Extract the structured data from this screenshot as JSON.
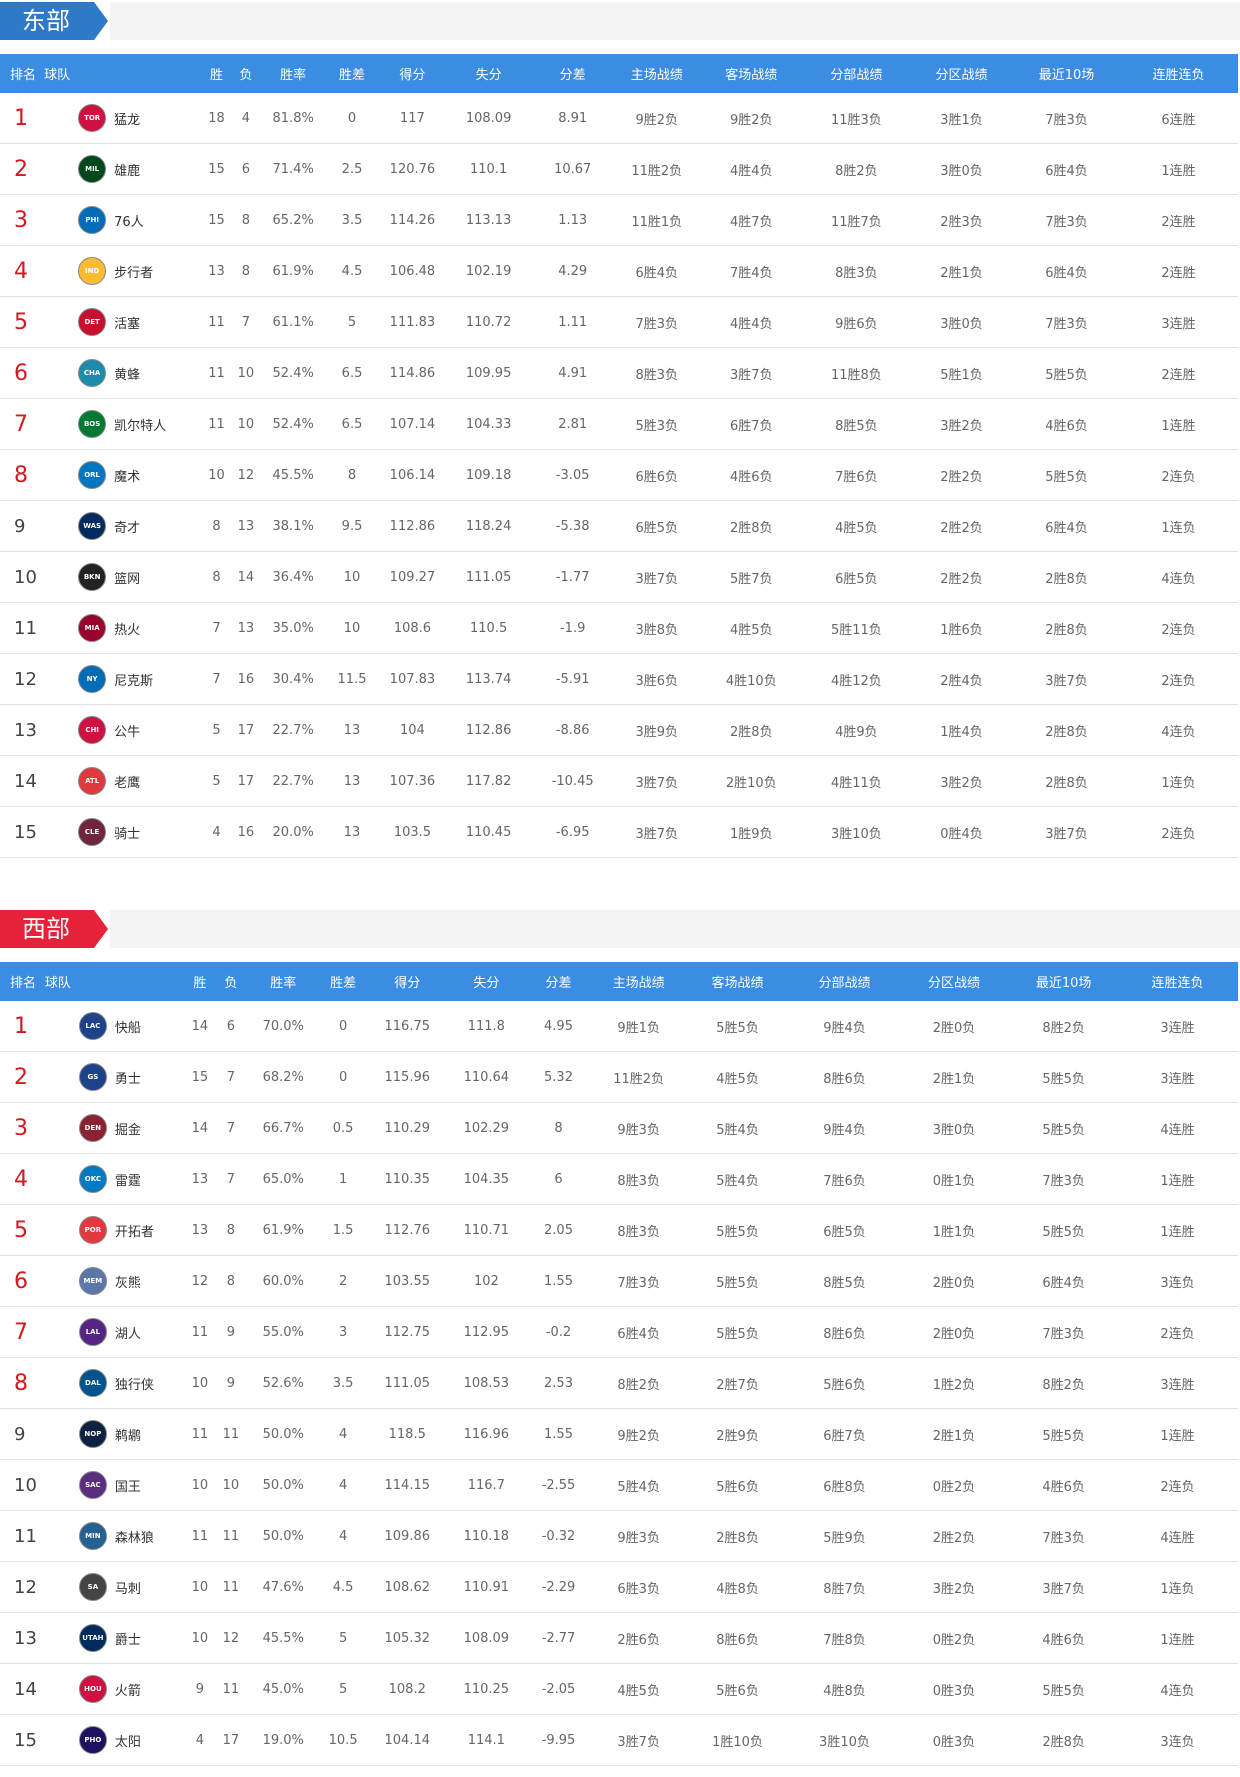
{
  "headers": [
    "排名",
    "球队",
    "胜",
    "负",
    "胜率",
    "胜差",
    "得分",
    "失分",
    "分差",
    "主场战绩",
    "客场战绩",
    "分部战绩",
    "分区战绩",
    "最近10场",
    "连胜连负"
  ],
  "east": {
    "title": "东部",
    "rows": [
      {
        "rank": "1",
        "abbr": "TOR",
        "color": "#ce1141",
        "team": "猛龙",
        "w": "18",
        "l": "4",
        "pct": "81.8%",
        "gb": "0",
        "pf": "117",
        "pa": "108.09",
        "diff": "8.91",
        "home": "9胜2负",
        "away": "9胜2负",
        "div": "11胜3负",
        "conf": "3胜1负",
        "last10": "7胜3负",
        "streak": "6连胜"
      },
      {
        "rank": "2",
        "abbr": "MIL",
        "color": "#00471b",
        "team": "雄鹿",
        "w": "15",
        "l": "6",
        "pct": "71.4%",
        "gb": "2.5",
        "pf": "120.76",
        "pa": "110.1",
        "diff": "10.67",
        "home": "11胜2负",
        "away": "4胜4负",
        "div": "8胜2负",
        "conf": "3胜0负",
        "last10": "6胜4负",
        "streak": "1连胜"
      },
      {
        "rank": "3",
        "abbr": "PHI",
        "color": "#006bb6",
        "team": "76人",
        "w": "15",
        "l": "8",
        "pct": "65.2%",
        "gb": "3.5",
        "pf": "114.26",
        "pa": "113.13",
        "diff": "1.13",
        "home": "11胜1负",
        "away": "4胜7负",
        "div": "11胜7负",
        "conf": "2胜3负",
        "last10": "7胜3负",
        "streak": "2连胜"
      },
      {
        "rank": "4",
        "abbr": "IND",
        "color": "#fdbb30",
        "team": "步行者",
        "w": "13",
        "l": "8",
        "pct": "61.9%",
        "gb": "4.5",
        "pf": "106.48",
        "pa": "102.19",
        "diff": "4.29",
        "home": "6胜4负",
        "away": "7胜4负",
        "div": "8胜3负",
        "conf": "2胜1负",
        "last10": "6胜4负",
        "streak": "2连胜"
      },
      {
        "rank": "5",
        "abbr": "DET",
        "color": "#c8102e",
        "team": "活塞",
        "w": "11",
        "l": "7",
        "pct": "61.1%",
        "gb": "5",
        "pf": "111.83",
        "pa": "110.72",
        "diff": "1.11",
        "home": "7胜3负",
        "away": "4胜4负",
        "div": "9胜6负",
        "conf": "3胜0负",
        "last10": "7胜3负",
        "streak": "3连胜"
      },
      {
        "rank": "6",
        "abbr": "CHA",
        "color": "#1d8cab",
        "team": "黄蜂",
        "w": "11",
        "l": "10",
        "pct": "52.4%",
        "gb": "6.5",
        "pf": "114.86",
        "pa": "109.95",
        "diff": "4.91",
        "home": "8胜3负",
        "away": "3胜7负",
        "div": "11胜8负",
        "conf": "5胜1负",
        "last10": "5胜5负",
        "streak": "2连胜"
      },
      {
        "rank": "7",
        "abbr": "BOS",
        "color": "#007a33",
        "team": "凯尔特人",
        "w": "11",
        "l": "10",
        "pct": "52.4%",
        "gb": "6.5",
        "pf": "107.14",
        "pa": "104.33",
        "diff": "2.81",
        "home": "5胜3负",
        "away": "6胜7负",
        "div": "8胜5负",
        "conf": "3胜2负",
        "last10": "4胜6负",
        "streak": "1连胜"
      },
      {
        "rank": "8",
        "abbr": "ORL",
        "color": "#0077c0",
        "team": "魔术",
        "w": "10",
        "l": "12",
        "pct": "45.5%",
        "gb": "8",
        "pf": "106.14",
        "pa": "109.18",
        "diff": "-3.05",
        "home": "6胜6负",
        "away": "4胜6负",
        "div": "7胜6负",
        "conf": "2胜2负",
        "last10": "5胜5负",
        "streak": "2连负"
      },
      {
        "rank": "9",
        "abbr": "WAS",
        "color": "#002b5c",
        "team": "奇才",
        "w": "8",
        "l": "13",
        "pct": "38.1%",
        "gb": "9.5",
        "pf": "112.86",
        "pa": "118.24",
        "diff": "-5.38",
        "home": "6胜5负",
        "away": "2胜8负",
        "div": "4胜5负",
        "conf": "2胜2负",
        "last10": "6胜4负",
        "streak": "1连负"
      },
      {
        "rank": "10",
        "abbr": "BKN",
        "color": "#222222",
        "team": "篮网",
        "w": "8",
        "l": "14",
        "pct": "36.4%",
        "gb": "10",
        "pf": "109.27",
        "pa": "111.05",
        "diff": "-1.77",
        "home": "3胜7负",
        "away": "5胜7负",
        "div": "6胜5负",
        "conf": "2胜2负",
        "last10": "2胜8负",
        "streak": "4连负"
      },
      {
        "rank": "11",
        "abbr": "MIA",
        "color": "#98002e",
        "team": "热火",
        "w": "7",
        "l": "13",
        "pct": "35.0%",
        "gb": "10",
        "pf": "108.6",
        "pa": "110.5",
        "diff": "-1.9",
        "home": "3胜8负",
        "away": "4胜5负",
        "div": "5胜11负",
        "conf": "1胜6负",
        "last10": "2胜8负",
        "streak": "2连负"
      },
      {
        "rank": "12",
        "abbr": "NY",
        "color": "#006bb6",
        "team": "尼克斯",
        "w": "7",
        "l": "16",
        "pct": "30.4%",
        "gb": "11.5",
        "pf": "107.83",
        "pa": "113.74",
        "diff": "-5.91",
        "home": "3胜6负",
        "away": "4胜10负",
        "div": "4胜12负",
        "conf": "2胜4负",
        "last10": "3胜7负",
        "streak": "2连负"
      },
      {
        "rank": "13",
        "abbr": "CHI",
        "color": "#ce1141",
        "team": "公牛",
        "w": "5",
        "l": "17",
        "pct": "22.7%",
        "gb": "13",
        "pf": "104",
        "pa": "112.86",
        "diff": "-8.86",
        "home": "3胜9负",
        "away": "2胜8负",
        "div": "4胜9负",
        "conf": "1胜4负",
        "last10": "2胜8负",
        "streak": "4连负"
      },
      {
        "rank": "14",
        "abbr": "ATL",
        "color": "#e03a3e",
        "team": "老鹰",
        "w": "5",
        "l": "17",
        "pct": "22.7%",
        "gb": "13",
        "pf": "107.36",
        "pa": "117.82",
        "diff": "-10.45",
        "home": "3胜7负",
        "away": "2胜10负",
        "div": "4胜11负",
        "conf": "3胜2负",
        "last10": "2胜8负",
        "streak": "1连负"
      },
      {
        "rank": "15",
        "abbr": "CLE",
        "color": "#6f263d",
        "team": "骑士",
        "w": "4",
        "l": "16",
        "pct": "20.0%",
        "gb": "13",
        "pf": "103.5",
        "pa": "110.45",
        "diff": "-6.95",
        "home": "3胜7负",
        "away": "1胜9负",
        "div": "3胜10负",
        "conf": "0胜4负",
        "last10": "3胜7负",
        "streak": "2连负"
      }
    ]
  },
  "west": {
    "title": "西部",
    "rows": [
      {
        "rank": "1",
        "abbr": "LAC",
        "color": "#1d428a",
        "team": "快船",
        "w": "14",
        "l": "6",
        "pct": "70.0%",
        "gb": "0",
        "pf": "116.75",
        "pa": "111.8",
        "diff": "4.95",
        "home": "9胜1负",
        "away": "5胜5负",
        "div": "9胜4负",
        "conf": "2胜0负",
        "last10": "8胜2负",
        "streak": "3连胜"
      },
      {
        "rank": "2",
        "abbr": "GS",
        "color": "#1d428a",
        "team": "勇士",
        "w": "15",
        "l": "7",
        "pct": "68.2%",
        "gb": "0",
        "pf": "115.96",
        "pa": "110.64",
        "diff": "5.32",
        "home": "11胜2负",
        "away": "4胜5负",
        "div": "8胜6负",
        "conf": "2胜1负",
        "last10": "5胜5负",
        "streak": "3连胜"
      },
      {
        "rank": "3",
        "abbr": "DEN",
        "color": "#8b2131",
        "team": "掘金",
        "w": "14",
        "l": "7",
        "pct": "66.7%",
        "gb": "0.5",
        "pf": "110.29",
        "pa": "102.29",
        "diff": "8",
        "home": "9胜3负",
        "away": "5胜4负",
        "div": "9胜4负",
        "conf": "3胜0负",
        "last10": "5胜5负",
        "streak": "4连胜"
      },
      {
        "rank": "4",
        "abbr": "OKC",
        "color": "#007ac1",
        "team": "雷霆",
        "w": "13",
        "l": "7",
        "pct": "65.0%",
        "gb": "1",
        "pf": "110.35",
        "pa": "104.35",
        "diff": "6",
        "home": "8胜3负",
        "away": "5胜4负",
        "div": "7胜6负",
        "conf": "0胜1负",
        "last10": "7胜3负",
        "streak": "1连胜"
      },
      {
        "rank": "5",
        "abbr": "POR",
        "color": "#e03a3e",
        "team": "开拓者",
        "w": "13",
        "l": "8",
        "pct": "61.9%",
        "gb": "1.5",
        "pf": "112.76",
        "pa": "110.71",
        "diff": "2.05",
        "home": "8胜3负",
        "away": "5胜5负",
        "div": "6胜5负",
        "conf": "1胜1负",
        "last10": "5胜5负",
        "streak": "1连胜"
      },
      {
        "rank": "6",
        "abbr": "MEM",
        "color": "#5d76a9",
        "team": "灰熊",
        "w": "12",
        "l": "8",
        "pct": "60.0%",
        "gb": "2",
        "pf": "103.55",
        "pa": "102",
        "diff": "1.55",
        "home": "7胜3负",
        "away": "5胜5负",
        "div": "8胜5负",
        "conf": "2胜0负",
        "last10": "6胜4负",
        "streak": "3连负"
      },
      {
        "rank": "7",
        "abbr": "LAL",
        "color": "#552583",
        "team": "湖人",
        "w": "11",
        "l": "9",
        "pct": "55.0%",
        "gb": "3",
        "pf": "112.75",
        "pa": "112.95",
        "diff": "-0.2",
        "home": "6胜4负",
        "away": "5胜5负",
        "div": "8胜6负",
        "conf": "2胜0负",
        "last10": "7胜3负",
        "streak": "2连负"
      },
      {
        "rank": "8",
        "abbr": "DAL",
        "color": "#00538c",
        "team": "独行侠",
        "w": "10",
        "l": "9",
        "pct": "52.6%",
        "gb": "3.5",
        "pf": "111.05",
        "pa": "108.53",
        "diff": "2.53",
        "home": "8胜2负",
        "away": "2胜7负",
        "div": "5胜6负",
        "conf": "1胜2负",
        "last10": "8胜2负",
        "streak": "3连胜"
      },
      {
        "rank": "9",
        "abbr": "NOP",
        "color": "#0c2340",
        "team": "鹈鹕",
        "w": "11",
        "l": "11",
        "pct": "50.0%",
        "gb": "4",
        "pf": "118.5",
        "pa": "116.96",
        "diff": "1.55",
        "home": "9胜2负",
        "away": "2胜9负",
        "div": "6胜7负",
        "conf": "2胜1负",
        "last10": "5胜5负",
        "streak": "1连胜"
      },
      {
        "rank": "10",
        "abbr": "SAC",
        "color": "#5a2d81",
        "team": "国王",
        "w": "10",
        "l": "10",
        "pct": "50.0%",
        "gb": "4",
        "pf": "114.15",
        "pa": "116.7",
        "diff": "-2.55",
        "home": "5胜4负",
        "away": "5胜6负",
        "div": "6胜8负",
        "conf": "0胜2负",
        "last10": "4胜6负",
        "streak": "2连负"
      },
      {
        "rank": "11",
        "abbr": "MIN",
        "color": "#236192",
        "team": "森林狼",
        "w": "11",
        "l": "11",
        "pct": "50.0%",
        "gb": "4",
        "pf": "109.86",
        "pa": "110.18",
        "diff": "-0.32",
        "home": "9胜3负",
        "away": "2胜8负",
        "div": "5胜9负",
        "conf": "2胜2负",
        "last10": "7胜3负",
        "streak": "4连胜"
      },
      {
        "rank": "12",
        "abbr": "SA",
        "color": "#444444",
        "team": "马刺",
        "w": "10",
        "l": "11",
        "pct": "47.6%",
        "gb": "4.5",
        "pf": "108.62",
        "pa": "110.91",
        "diff": "-2.29",
        "home": "6胜3负",
        "away": "4胜8负",
        "div": "8胜7负",
        "conf": "3胜2负",
        "last10": "3胜7负",
        "streak": "1连负"
      },
      {
        "rank": "13",
        "abbr": "UTAH",
        "color": "#002b5c",
        "team": "爵士",
        "w": "10",
        "l": "12",
        "pct": "45.5%",
        "gb": "5",
        "pf": "105.32",
        "pa": "108.09",
        "diff": "-2.77",
        "home": "2胜6负",
        "away": "8胜6负",
        "div": "7胜8负",
        "conf": "0胜2负",
        "last10": "4胜6负",
        "streak": "1连胜"
      },
      {
        "rank": "14",
        "abbr": "HOU",
        "color": "#ce1141",
        "team": "火箭",
        "w": "9",
        "l": "11",
        "pct": "45.0%",
        "gb": "5",
        "pf": "108.2",
        "pa": "110.25",
        "diff": "-2.05",
        "home": "4胜5负",
        "away": "5胜6负",
        "div": "4胜8负",
        "conf": "0胜3负",
        "last10": "5胜5负",
        "streak": "4连负"
      },
      {
        "rank": "15",
        "abbr": "PHO",
        "color": "#1d1160",
        "team": "太阳",
        "w": "4",
        "l": "17",
        "pct": "19.0%",
        "gb": "10.5",
        "pf": "104.14",
        "pa": "114.1",
        "diff": "-9.95",
        "home": "3胜7负",
        "away": "1胜10负",
        "div": "3胜10负",
        "conf": "0胜3负",
        "last10": "2胜8负",
        "streak": "3连负"
      }
    ]
  }
}
